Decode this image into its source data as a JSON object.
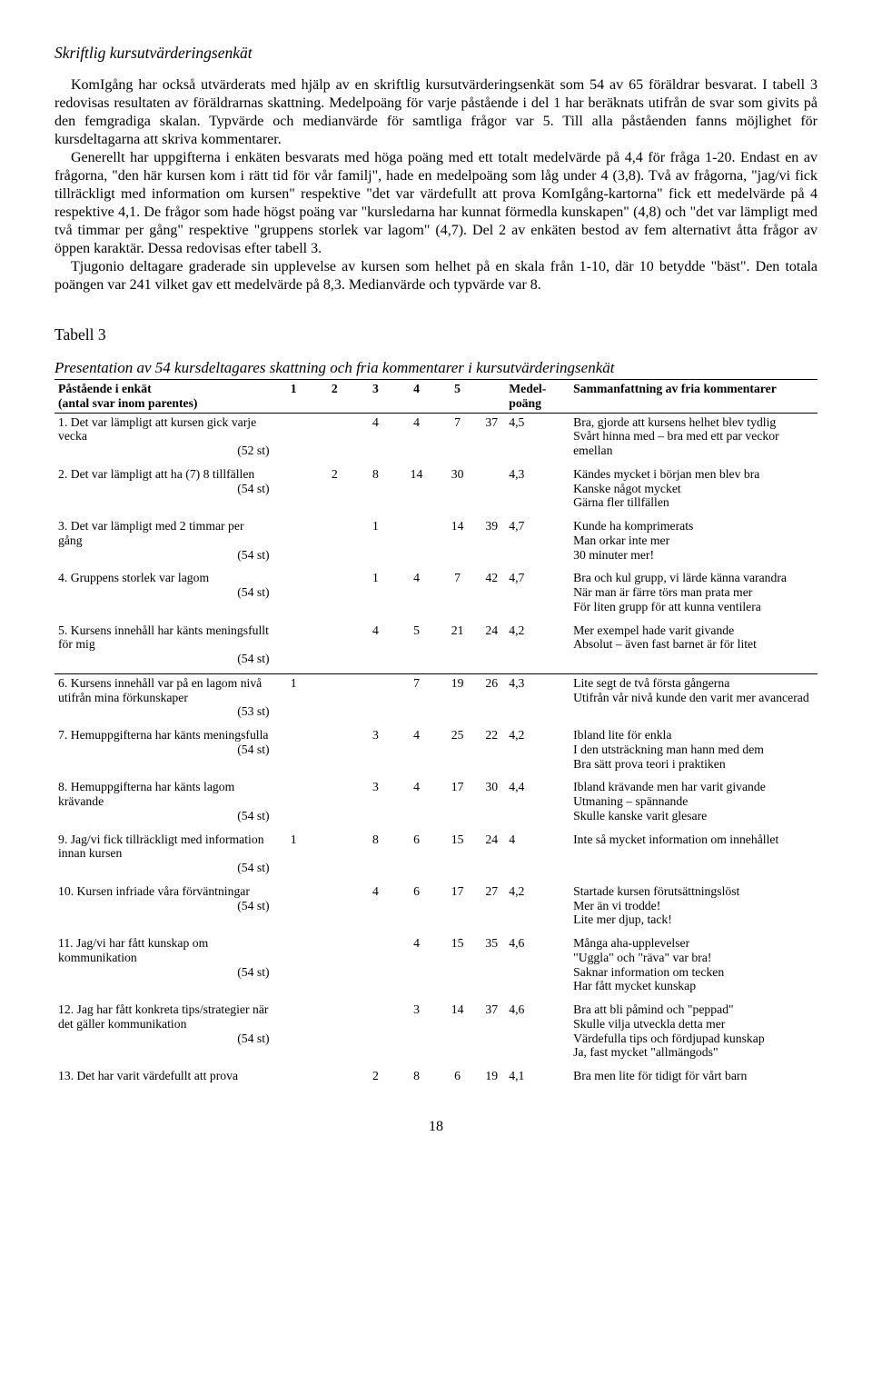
{
  "section_title": "Skriftlig kursutvärderingsenkät",
  "para1": "KomIgång har också utvärderats med hjälp av en skriftlig kursutvärderingsenkät som 54 av 65 föräldrar besvarat. I tabell 3 redovisas resultaten av föräldrarnas skattning. Medelpoäng för varje påstående i del 1 har beräknats utifrån de svar som givits på den femgradiga skalan. Typvärde och medianvärde för samtliga frågor var 5. Till alla påståenden fanns möjlighet för kursdeltagarna att skriva kommentarer.",
  "para2": "Generellt har uppgifterna i enkäten besvarats med höga poäng med ett totalt medelvärde på 4,4 för fråga 1-20. Endast en av frågorna, \"den här kursen kom i rätt tid för vår familj\", hade en medelpoäng som låg under 4 (3,8). Två av frågorna, \"jag/vi fick tillräckligt med information om kursen\" respektive \"det var värdefullt att prova KomIgång-kartorna\" fick ett medelvärde på 4 respektive 4,1. De frågor som hade högst poäng var \"kursledarna har kunnat förmedla kunskapen\" (4,8) och \"det var lämpligt med två timmar per gång\" respektive \"gruppens storlek var lagom\" (4,7). Del 2 av enkäten bestod av fem alternativt åtta frågor av öppen karaktär. Dessa redovisas efter tabell 3.",
  "para3": "Tjugonio deltagare graderade sin upplevelse av kursen som helhet på en skala från 1-10, där 10 betydde \"bäst\". Den totala poängen var 241 vilket gav ett medelvärde på 8,3. Medianvärde och typvärde var 8.",
  "table_heading": "Tabell 3",
  "table_caption": "Presentation av 54 kursdeltagares skattning och fria kommentarer i kursutvärderingsenkät",
  "headers": {
    "statement": "Påstående i enkät",
    "statement_sub": "(antal svar inom parentes)",
    "c1": "1",
    "c2": "2",
    "c3": "3",
    "c4": "4",
    "c5": "5",
    "mean": "Medel-",
    "mean_sub": "poäng",
    "summary": "Sammanfattning av fria kommentarer"
  },
  "rows": [
    {
      "text": "1. Det var lämpligt att kursen gick varje vecka",
      "count": "(52 st)",
      "v": [
        "",
        "",
        "4",
        "4",
        "7",
        "37"
      ],
      "mean": "4,5",
      "comments": [
        "Bra, gjorde att kursens helhet blev tydlig",
        "Svårt hinna med – bra med ett par veckor emellan"
      ]
    },
    {
      "text": "2. Det var lämpligt att ha (7) 8 tillfällen",
      "count": "(54 st)",
      "v": [
        "",
        "2",
        "8",
        "14",
        "30",
        ""
      ],
      "mean": "4,3",
      "cols_shift": true,
      "comments": [
        "Kändes mycket i början men blev bra",
        "Kanske något mycket",
        "Gärna fler tillfällen"
      ]
    },
    {
      "text": "3. Det var lämpligt med 2 timmar per gång",
      "count": "(54 st)",
      "v": [
        "",
        "",
        "1",
        "",
        "14",
        "39"
      ],
      "mean": "4,7",
      "comments": [
        "Kunde ha komprimerats",
        "Man orkar inte mer",
        "30 minuter mer!"
      ]
    },
    {
      "text": "4. Gruppens storlek var lagom",
      "count": "(54 st)",
      "v": [
        "",
        "",
        "1",
        "4",
        "7",
        "42"
      ],
      "mean": "4,7",
      "comments": [
        "Bra och kul grupp, vi lärde känna varandra",
        "När man är färre törs man prata mer",
        "För liten grupp för att kunna ventilera"
      ]
    },
    {
      "text": "5. Kursens innehåll har känts meningsfullt för mig",
      "count": "(54 st)",
      "v": [
        "",
        "",
        "4",
        "5",
        "21",
        "24"
      ],
      "mean": "4,2",
      "comments": [
        "Mer exempel hade varit givande",
        "Absolut – även fast barnet är för litet"
      ]
    },
    {
      "sep": true,
      "text": "6. Kursens innehåll var på en lagom nivå utifrån mina förkunskaper",
      "count": "(53 st)",
      "v": [
        "1",
        "",
        "",
        "7",
        "19",
        "26"
      ],
      "mean": "4,3",
      "comments": [
        "Lite segt de två första gångerna",
        "Utifrån vår nivå kunde den varit mer avancerad"
      ]
    },
    {
      "text": "7. Hemuppgifterna har känts meningsfulla",
      "count": "(54 st)",
      "v": [
        "",
        "",
        "3",
        "4",
        "25",
        "22"
      ],
      "mean": "4,2",
      "comments": [
        "Ibland lite för enkla",
        "I den utsträckning man hann med dem",
        "Bra sätt prova teori i praktiken"
      ]
    },
    {
      "text": "8. Hemuppgifterna har känts lagom krävande",
      "count": "(54 st)",
      "v": [
        "",
        "",
        "3",
        "4",
        "17",
        "30"
      ],
      "mean": "4,4",
      "comments": [
        "Ibland krävande men har varit givande",
        "Utmaning – spännande",
        "Skulle kanske varit glesare"
      ]
    },
    {
      "text": "9. Jag/vi fick tillräckligt med information innan kursen",
      "count": "(54 st)",
      "v": [
        "1",
        "",
        "8",
        "6",
        "15",
        "24"
      ],
      "mean": "4",
      "comments": [
        "Inte så mycket information om innehållet"
      ]
    },
    {
      "text": "10. Kursen infriade våra förväntningar",
      "count": "(54 st)",
      "v": [
        "",
        "",
        "4",
        "6",
        "17",
        "27"
      ],
      "mean": "4,2",
      "comments": [
        "Startade kursen förutsättningslöst",
        "Mer än vi trodde!",
        "Lite mer djup, tack!"
      ]
    },
    {
      "text": "11. Jag/vi har fått kunskap om kommunikation",
      "count": "(54 st)",
      "v": [
        "",
        "",
        "",
        "4",
        "15",
        "35"
      ],
      "mean": "4,6",
      "comments": [
        "Många aha-upplevelser",
        "\"Uggla\" och \"räva\" var bra!",
        "Saknar information om tecken",
        "Har fått mycket kunskap"
      ]
    },
    {
      "text": "12. Jag har fått konkreta tips/strategier när det gäller kommunikation",
      "count": "(54 st)",
      "v": [
        "",
        "",
        "",
        "3",
        "14",
        "37"
      ],
      "mean": "4,6",
      "comments": [
        "Bra att bli påmind och \"peppad\"",
        "Skulle vilja utveckla detta mer",
        "Värdefulla tips och fördjupad kunskap",
        "Ja, fast mycket \"allmängods\""
      ]
    },
    {
      "text": "13. Det har varit värdefullt att prova",
      "count": "",
      "v": [
        "",
        "",
        "2",
        "8",
        "6",
        "19"
      ],
      "mean": "4,1",
      "comments": [
        "Bra men lite för tidigt för vårt barn"
      ]
    }
  ],
  "page_number": "18"
}
